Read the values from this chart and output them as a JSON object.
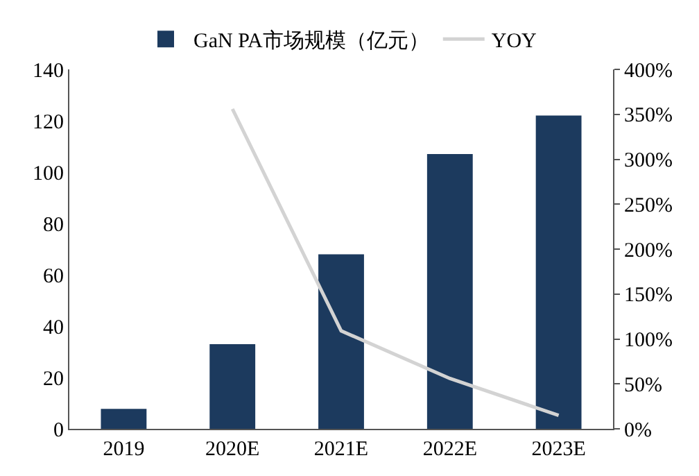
{
  "chart_data": {
    "type": "bar",
    "categories": [
      "2019",
      "2020E",
      "2021E",
      "2022E",
      "2023E"
    ],
    "series": [
      {
        "name": "GaN PA市场规模（亿元）",
        "color": "#1c3a5e",
        "values": [
          7.8,
          33,
          68,
          107,
          122
        ]
      },
      {
        "name": "YOY",
        "type": "line",
        "axis": "y2",
        "color": "#d3d3d3",
        "values": [
          null,
          356,
          109,
          56,
          15
        ]
      }
    ],
    "ylim": [
      0,
      140
    ],
    "yticks": [
      0,
      20,
      40,
      60,
      80,
      100,
      120,
      140
    ],
    "y2lim": [
      0,
      400
    ],
    "y2ticks": [
      {
        "value": 0,
        "label": "0%"
      },
      {
        "value": 50,
        "label": "50%"
      },
      {
        "value": 100,
        "label": "100%"
      },
      {
        "value": 150,
        "label": "150%"
      },
      {
        "value": 200,
        "label": "200%"
      },
      {
        "value": 250,
        "label": "250%"
      },
      {
        "value": 300,
        "label": "300%"
      },
      {
        "value": 350,
        "label": "350%"
      },
      {
        "value": 400,
        "label": "400%"
      }
    ],
    "grid": false,
    "legend": "top"
  }
}
